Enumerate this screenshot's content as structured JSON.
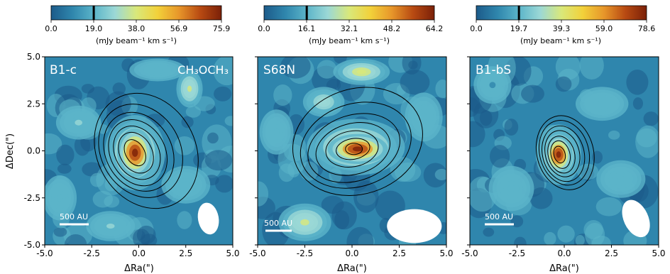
{
  "colors": {
    "colormap": [
      "#1c5b8a",
      "#2f86ad",
      "#5bb4c9",
      "#9bd8d6",
      "#d9e87a",
      "#f2d13a",
      "#e7962a",
      "#b84a12",
      "#7a2008"
    ],
    "contour": "#000000",
    "marker": "#000000",
    "overlay_text": "#ffffff"
  },
  "chart_data": [
    {
      "type": "heatmap",
      "panel_label": "B1-c",
      "molecule_label": "CH₃OCH₃",
      "xlabel": "ΔRa(\")",
      "ylabel": "ΔDec(\")",
      "xlim": [
        -5.0,
        5.0
      ],
      "ylim": [
        -5.0,
        5.0
      ],
      "xticks": [
        "-5.0",
        "-2.5",
        "0.0",
        "2.5",
        "5.0"
      ],
      "yticks": [
        "5.0",
        "2.5",
        "0.0",
        "-2.5",
        "-5.0"
      ],
      "colorbar": {
        "ticks": [
          "0.0",
          "19.0",
          "38.0",
          "56.9",
          "75.9"
        ],
        "min": 0.0,
        "max": 75.9,
        "marker": 19.0,
        "label": "(mJy beam⁻¹ km s⁻¹)"
      },
      "peak": {
        "x": -0.2,
        "y": -0.1
      },
      "scalebar_label": "500 AU",
      "beam": {
        "x": 3.7,
        "y": -3.6,
        "major": 1.7,
        "minor": 1.1,
        "angle": -10
      },
      "contours": [
        {
          "cx": 0.4,
          "cy": 0.0,
          "rx": 2.6,
          "ry": 3.2,
          "rot": -30
        },
        {
          "cx": 0.1,
          "cy": 0.0,
          "rx": 2.1,
          "ry": 2.6,
          "rot": -30
        },
        {
          "cx": 0.0,
          "cy": -0.05,
          "rx": 1.75,
          "ry": 2.2,
          "rot": -30
        },
        {
          "cx": -0.05,
          "cy": -0.1,
          "rx": 1.45,
          "ry": 1.85,
          "rot": -30
        },
        {
          "cx": -0.1,
          "cy": -0.1,
          "rx": 1.15,
          "ry": 1.5,
          "rot": -30
        },
        {
          "cx": -0.15,
          "cy": -0.1,
          "rx": 0.85,
          "ry": 1.15,
          "rot": -30
        },
        {
          "cx": -0.2,
          "cy": -0.1,
          "rx": 0.5,
          "ry": 0.75,
          "rot": -30
        }
      ],
      "blobs": [
        {
          "x": -0.2,
          "y": -0.1,
          "rx": 0.95,
          "ry": 1.3,
          "v": 1.0
        },
        {
          "x": -0.2,
          "y": -0.1,
          "rx": 1.6,
          "ry": 2.0,
          "v": 0.55
        },
        {
          "x": 2.7,
          "y": 3.3,
          "rx": 0.7,
          "ry": 1.0,
          "v": 0.45
        },
        {
          "x": -3.2,
          "y": 1.5,
          "rx": 1.2,
          "ry": 0.9,
          "v": 0.32
        },
        {
          "x": 2.5,
          "y": -1.8,
          "rx": 1.3,
          "ry": 1.0,
          "v": 0.3
        },
        {
          "x": -1.5,
          "y": -4.0,
          "rx": 1.3,
          "ry": 0.8,
          "v": 0.32
        },
        {
          "x": 1.0,
          "y": 4.3,
          "rx": 1.5,
          "ry": 0.6,
          "v": 0.28
        },
        {
          "x": -4.2,
          "y": -2.5,
          "rx": 0.9,
          "ry": 1.2,
          "v": 0.22
        }
      ]
    },
    {
      "type": "heatmap",
      "panel_label": "S68N",
      "molecule_label": "",
      "xlabel": "ΔRa(\")",
      "ylabel": "",
      "xlim": [
        -5.0,
        5.0
      ],
      "ylim": [
        -5.0,
        5.0
      ],
      "xticks": [
        "-5.0",
        "-2.5",
        "0.0",
        "2.5",
        "5.0"
      ],
      "yticks": [],
      "colorbar": {
        "ticks": [
          "0.0",
          "16.1",
          "32.1",
          "48.2",
          "64.2"
        ],
        "min": 0.0,
        "max": 64.2,
        "marker": 16.1,
        "label": "(mJy beam⁻¹ km s⁻¹)"
      },
      "peak": {
        "x": 0.0,
        "y": 0.1
      },
      "scalebar_label": "500 AU",
      "beam": {
        "x": 3.3,
        "y": -4.0,
        "major": 2.9,
        "minor": 1.8,
        "angle": 0
      },
      "contours": [
        {
          "cx": 0.3,
          "cy": 0.5,
          "rx": 3.5,
          "ry": 2.8,
          "rot": -18
        },
        {
          "cx": 0.2,
          "cy": 0.3,
          "rx": 3.0,
          "ry": 2.2,
          "rot": -18
        },
        {
          "cx": 0.1,
          "cy": 0.15,
          "rx": 2.5,
          "ry": 1.75,
          "rot": -18
        },
        {
          "cx": 0.05,
          "cy": 0.1,
          "rx": 2.0,
          "ry": 1.35,
          "rot": -15
        },
        {
          "cx": 0.0,
          "cy": 0.1,
          "rx": 1.4,
          "ry": 0.95,
          "rot": -10
        },
        {
          "cx": 0.05,
          "cy": 0.1,
          "rx": 0.9,
          "ry": 0.55,
          "rot": -10
        },
        {
          "cx": 0.1,
          "cy": 0.1,
          "rx": 0.45,
          "ry": 0.3,
          "rot": 0
        }
      ],
      "blobs": [
        {
          "x": 0.3,
          "y": 0.1,
          "rx": 1.6,
          "ry": 0.8,
          "v": 1.0
        },
        {
          "x": 0.2,
          "y": 0.2,
          "rx": 2.6,
          "ry": 1.5,
          "v": 0.5
        },
        {
          "x": 0.5,
          "y": 4.2,
          "rx": 1.5,
          "ry": 0.7,
          "v": 0.5
        },
        {
          "x": -2.5,
          "y": -3.8,
          "rx": 1.4,
          "ry": 1.0,
          "v": 0.45
        },
        {
          "x": -1.5,
          "y": 2.6,
          "rx": 1.1,
          "ry": 0.8,
          "v": 0.38
        },
        {
          "x": 3.8,
          "y": 1.8,
          "rx": 1.0,
          "ry": 1.3,
          "v": 0.3
        },
        {
          "x": -4.0,
          "y": 1.0,
          "rx": 0.9,
          "ry": 1.2,
          "v": 0.22
        }
      ]
    },
    {
      "type": "heatmap",
      "panel_label": "B1-bS",
      "molecule_label": "",
      "xlabel": "ΔRa(\")",
      "ylabel": "",
      "xlim": [
        -5.0,
        5.0
      ],
      "ylim": [
        -5.0,
        5.0
      ],
      "xticks": [
        "-5.0",
        "-2.5",
        "0.0",
        "2.5",
        "5.0"
      ],
      "yticks": [],
      "colorbar": {
        "ticks": [
          "0.0",
          "19.7",
          "39.3",
          "59.0",
          "78.6"
        ],
        "min": 0.0,
        "max": 78.6,
        "marker": 19.7,
        "label": "(mJy beam⁻¹ km s⁻¹)"
      },
      "peak": {
        "x": -0.3,
        "y": -0.2
      },
      "scalebar_label": "500 AU",
      "beam": {
        "x": 3.8,
        "y": -3.6,
        "major": 2.1,
        "minor": 1.3,
        "angle": -25
      },
      "contours": [
        {
          "cx": 0.05,
          "cy": -0.1,
          "rx": 1.5,
          "ry": 2.0,
          "rot": -15
        },
        {
          "cx": 0.0,
          "cy": -0.1,
          "rx": 1.3,
          "ry": 1.75,
          "rot": -15
        },
        {
          "cx": -0.05,
          "cy": -0.15,
          "rx": 1.1,
          "ry": 1.5,
          "rot": -15
        },
        {
          "cx": -0.1,
          "cy": -0.15,
          "rx": 0.9,
          "ry": 1.25,
          "rot": -15
        },
        {
          "cx": -0.15,
          "cy": -0.2,
          "rx": 0.7,
          "ry": 1.0,
          "rot": -15
        },
        {
          "cx": -0.2,
          "cy": -0.2,
          "rx": 0.5,
          "ry": 0.75,
          "rot": -15
        },
        {
          "cx": -0.25,
          "cy": -0.2,
          "rx": 0.3,
          "ry": 0.45,
          "rot": -15
        }
      ],
      "blobs": [
        {
          "x": -0.3,
          "y": -0.2,
          "rx": 0.75,
          "ry": 1.05,
          "v": 1.0
        },
        {
          "x": -0.3,
          "y": -0.2,
          "rx": 1.2,
          "ry": 1.6,
          "v": 0.55
        },
        {
          "x": 2.0,
          "y": 2.5,
          "rx": 1.4,
          "ry": 0.9,
          "v": 0.28
        },
        {
          "x": -2.8,
          "y": -2.0,
          "rx": 1.2,
          "ry": 1.2,
          "v": 0.22
        },
        {
          "x": 3.0,
          "y": -1.5,
          "rx": 1.3,
          "ry": 1.0,
          "v": 0.22
        },
        {
          "x": -3.8,
          "y": 3.5,
          "rx": 1.0,
          "ry": 1.0,
          "v": 0.18
        }
      ]
    }
  ]
}
